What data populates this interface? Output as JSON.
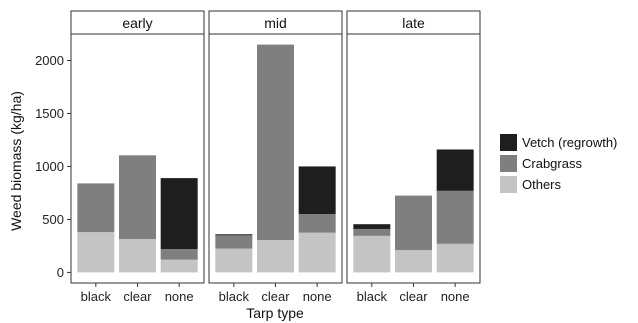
{
  "chart_data": {
    "type": "bar",
    "stacked": true,
    "facet_by": "timing",
    "panels": [
      {
        "title": "early",
        "categories": [
          "black",
          "clear",
          "none"
        ],
        "series": [
          {
            "name": "Others",
            "values": [
              380,
              315,
              120
            ]
          },
          {
            "name": "Crabgrass",
            "values": [
              460,
              790,
              100
            ]
          },
          {
            "name": "Vetch (regrowth)",
            "values": [
              0,
              0,
              670
            ]
          }
        ]
      },
      {
        "title": "mid",
        "categories": [
          "black",
          "clear",
          "none"
        ],
        "series": [
          {
            "name": "Others",
            "values": [
              225,
              305,
              375
            ]
          },
          {
            "name": "Crabgrass",
            "values": [
              125,
              1845,
              175
            ]
          },
          {
            "name": "Vetch (regrowth)",
            "values": [
              10,
              0,
              450
            ]
          }
        ]
      },
      {
        "title": "late",
        "categories": [
          "black",
          "clear",
          "none"
        ],
        "series": [
          {
            "name": "Others",
            "values": [
              345,
              210,
              270
            ]
          },
          {
            "name": "Crabgrass",
            "values": [
              65,
              515,
              500
            ]
          },
          {
            "name": "Vetch (regrowth)",
            "values": [
              45,
              0,
              390
            ]
          }
        ]
      }
    ],
    "xlabel": "Tarp type",
    "ylabel": "Weed biomass (kg/ha)",
    "ylim": [
      -100,
      2250
    ],
    "yticks": [
      0,
      500,
      1000,
      1500,
      2000
    ],
    "grid": false,
    "legend_position": "right",
    "legend_order": [
      "Vetch (regrowth)",
      "Crabgrass",
      "Others"
    ],
    "colors": {
      "Vetch (regrowth)": "#1e1e1e",
      "Crabgrass": "#7f7f7f",
      "Others": "#c4c4c4"
    }
  }
}
